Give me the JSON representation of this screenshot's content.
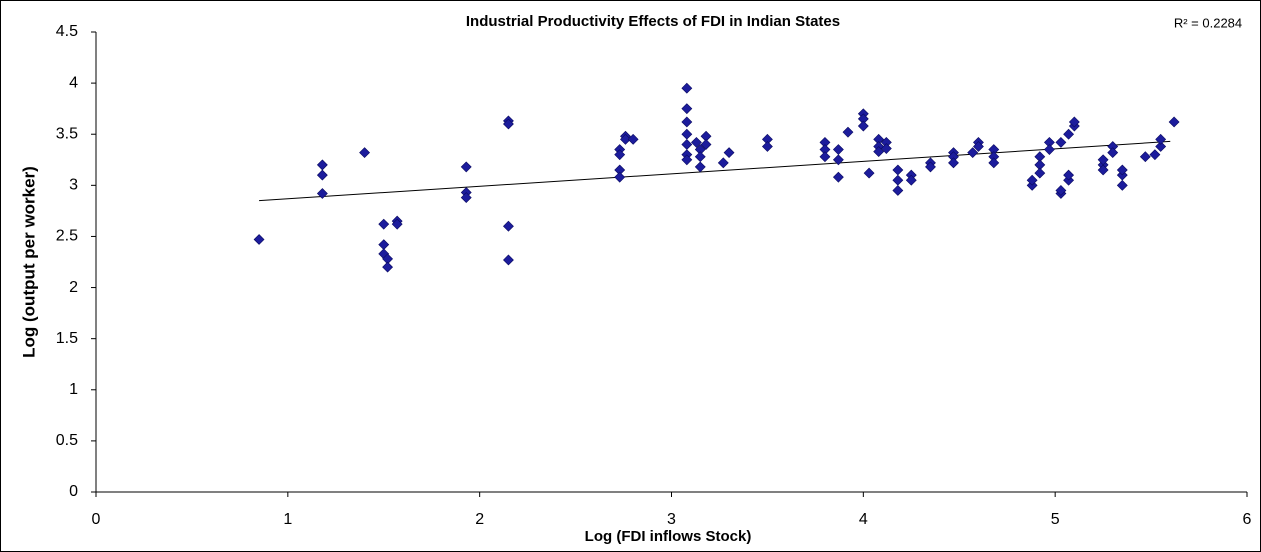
{
  "chart_data": {
    "type": "scatter",
    "title": "Industrial Productivity Effects of FDI in Indian States",
    "x_label": "Log (FDI inflows Stock)",
    "y_label": "Log (output per worker)",
    "r2_label": "R² = 0.2284",
    "color": "#1c1c9c",
    "x": [
      0.85,
      1.18,
      1.18,
      1.18,
      1.4,
      1.5,
      1.5,
      1.5,
      1.52,
      1.52,
      1.57,
      1.57,
      1.93,
      1.93,
      1.93,
      2.15,
      2.15,
      2.15,
      2.15,
      2.73,
      2.73,
      2.73,
      2.73,
      2.76,
      2.76,
      2.8,
      3.08,
      3.08,
      3.08,
      3.08,
      3.08,
      3.08,
      3.08,
      3.13,
      3.15,
      3.15,
      3.15,
      3.18,
      3.18,
      3.27,
      3.3,
      3.5,
      3.5,
      3.8,
      3.8,
      3.8,
      3.87,
      3.87,
      3.87,
      3.92,
      4.0,
      4.0,
      4.0,
      4.03,
      4.08,
      4.08,
      4.08,
      4.12,
      4.12,
      4.18,
      4.18,
      4.18,
      4.25,
      4.25,
      4.35,
      4.35,
      4.47,
      4.47,
      4.47,
      4.57,
      4.6,
      4.6,
      4.68,
      4.68,
      4.68,
      4.88,
      4.88,
      4.92,
      4.92,
      4.92,
      4.97,
      4.97,
      5.03,
      5.03,
      5.03,
      5.07,
      5.07,
      5.07,
      5.1,
      5.1,
      5.25,
      5.25,
      5.25,
      5.3,
      5.3,
      5.35,
      5.35,
      5.35,
      5.47,
      5.52,
      5.55,
      5.55,
      5.62
    ],
    "values": [
      2.47,
      3.2,
      3.1,
      2.92,
      3.32,
      2.62,
      2.42,
      2.33,
      2.28,
      2.2,
      2.65,
      2.62,
      3.18,
      2.93,
      2.88,
      3.63,
      3.6,
      2.6,
      2.27,
      3.35,
      3.3,
      3.15,
      3.08,
      3.48,
      3.45,
      3.45,
      3.95,
      3.75,
      3.62,
      3.5,
      3.4,
      3.3,
      3.25,
      3.42,
      3.35,
      3.28,
      3.18,
      3.48,
      3.4,
      3.22,
      3.32,
      3.45,
      3.38,
      3.42,
      3.35,
      3.28,
      3.35,
      3.25,
      3.08,
      3.52,
      3.7,
      3.65,
      3.58,
      3.12,
      3.45,
      3.38,
      3.33,
      3.42,
      3.36,
      3.15,
      2.95,
      3.05,
      3.1,
      3.05,
      3.22,
      3.18,
      3.32,
      3.28,
      3.22,
      3.32,
      3.42,
      3.38,
      3.35,
      3.28,
      3.22,
      3.0,
      3.05,
      3.28,
      3.2,
      3.12,
      3.42,
      3.35,
      2.92,
      2.95,
      3.42,
      3.5,
      3.05,
      3.1,
      3.58,
      3.62,
      3.2,
      3.25,
      3.15,
      3.38,
      3.32,
      3.0,
      3.1,
      3.15,
      3.28,
      3.3,
      3.38,
      3.45,
      3.62
    ],
    "trendline": {
      "x": [
        0.85,
        5.6
      ],
      "y": [
        2.85,
        3.43
      ]
    },
    "xlim": [
      0,
      6
    ],
    "xticks": [
      0,
      1,
      2,
      3,
      4,
      5,
      6
    ],
    "ylim": [
      0,
      4.5
    ],
    "yticks": [
      0,
      0.5,
      1,
      1.5,
      2,
      2.5,
      3,
      3.5,
      4,
      4.5
    ],
    "grid": false
  }
}
